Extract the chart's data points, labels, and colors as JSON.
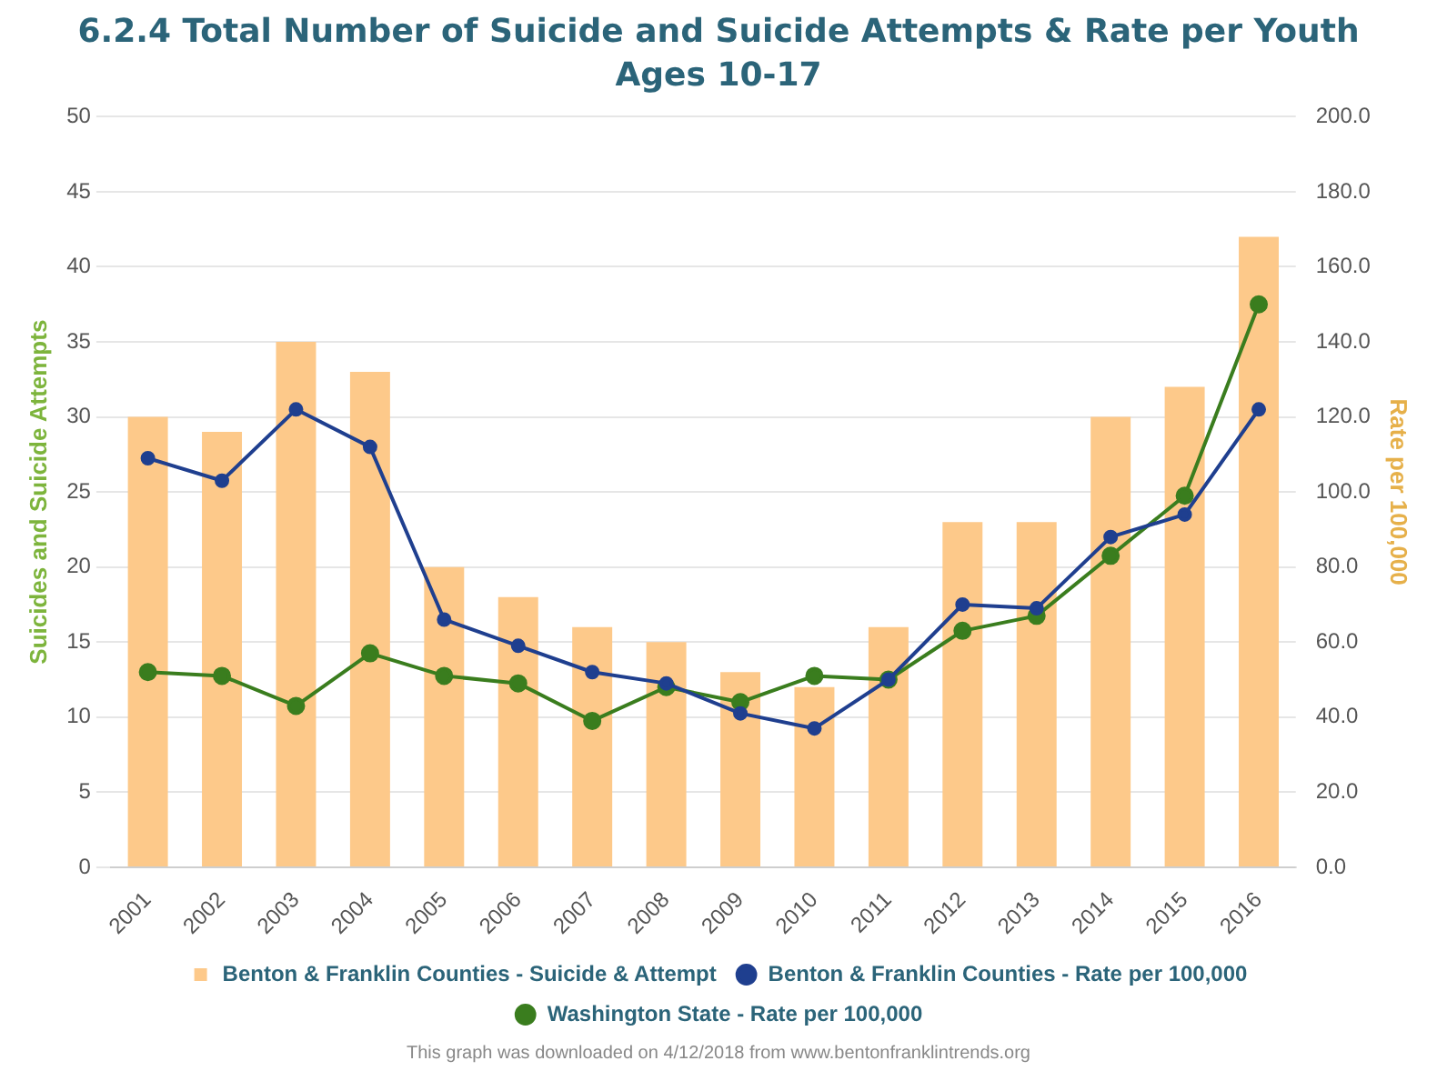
{
  "chart_data": {
    "type": "bar",
    "title": "6.2.4 Total Number of Suicide and Suicide Attempts & Rate per Youth Ages 10-17",
    "ylabel": "Suicides and Suicide Attempts",
    "y2label": "Rate per 100,000",
    "categories": [
      "2001",
      "2002",
      "2003",
      "2004",
      "2005",
      "2006",
      "2007",
      "2008",
      "2009",
      "2010",
      "2011",
      "2012",
      "2013",
      "2014",
      "2015",
      "2016"
    ],
    "series": [
      {
        "name": "Benton & Franklin Counties - Suicide & Attempt",
        "color": "#fdc98a",
        "values": [
          30,
          29,
          35,
          33,
          20,
          18,
          16,
          15,
          13,
          12,
          16,
          23,
          23,
          30,
          32,
          42
        ]
      },
      {
        "name": "Benton & Franklin Counties - Rate per 100,000",
        "type": "line",
        "axis": "y2",
        "color": "#1f3f8f",
        "values": [
          109,
          103,
          122,
          112,
          66,
          59,
          52,
          49,
          41,
          37,
          50,
          70,
          69,
          88,
          94,
          122
        ]
      },
      {
        "name": "Washington State - Rate per 100,000",
        "type": "line",
        "axis": "y2",
        "color": "#3a7d1e",
        "values": [
          52,
          51,
          43,
          57,
          51,
          49,
          39,
          48,
          44,
          51,
          50,
          63,
          67,
          83,
          99,
          150
        ]
      }
    ],
    "ylim": [
      0,
      50
    ],
    "yticks": [
      0,
      5,
      10,
      15,
      20,
      25,
      30,
      35,
      40,
      45,
      50
    ],
    "y2lim": [
      0,
      200
    ],
    "y2ticks": [
      {
        "value": 0,
        "label": "0.0"
      },
      {
        "value": 20,
        "label": "20.0"
      },
      {
        "value": 40,
        "label": "40.0"
      },
      {
        "value": 60,
        "label": "60.0"
      },
      {
        "value": 80,
        "label": "80.0"
      },
      {
        "value": 100,
        "label": "100.0"
      },
      {
        "value": 120,
        "label": "120.0"
      },
      {
        "value": 140,
        "label": "140.0"
      },
      {
        "value": 160,
        "label": "160.0"
      },
      {
        "value": 180,
        "label": "180.0"
      },
      {
        "value": 200,
        "label": "200.0"
      }
    ],
    "grid": "y",
    "legend": "bottom",
    "marker": "circle",
    "line_style": "solid",
    "annotations": [
      "This graph was downloaded on 4/12/2018 from www.bentonfranklintrends.org"
    ]
  }
}
